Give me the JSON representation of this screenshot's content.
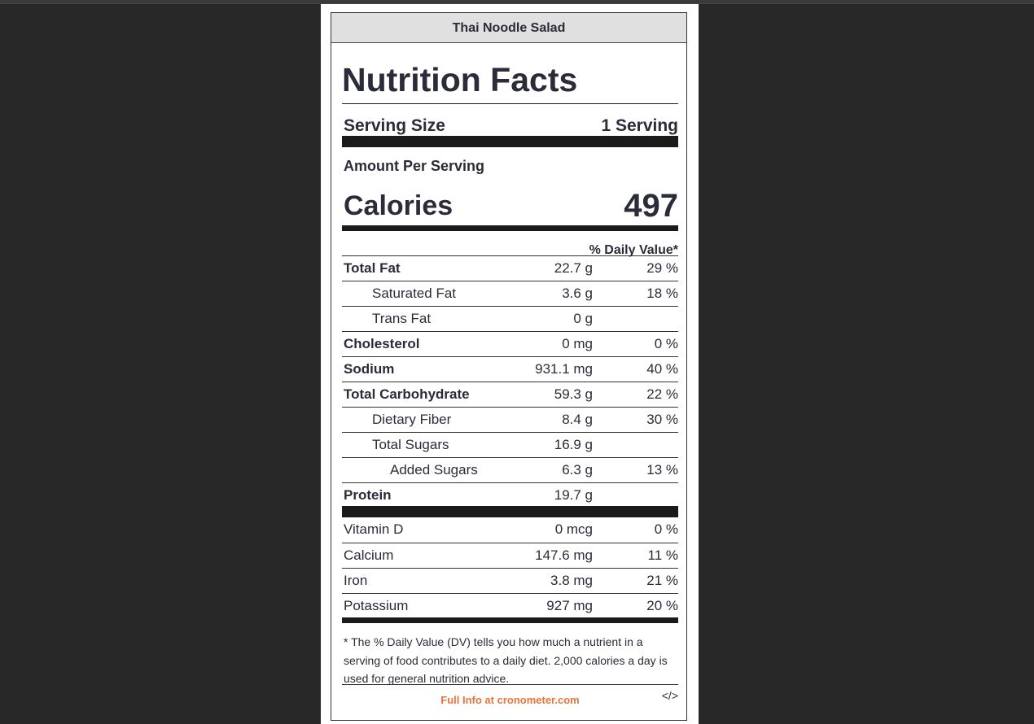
{
  "label": {
    "header_title": "Thai Noodle Salad",
    "title": "Nutrition Facts",
    "serving_size_label": "Serving Size",
    "serving_size_value": "1 Serving",
    "amount_per_serving": "Amount Per Serving",
    "calories_label": "Calories",
    "calories_value": "497",
    "dv_header": "% Daily Value*",
    "nutrients": [
      {
        "name": "Total Fat",
        "amount": "22.7 g",
        "dv": "29 %"
      },
      {
        "name": "Saturated Fat",
        "amount": "3.6 g",
        "dv": "18 %"
      },
      {
        "name": "Trans Fat",
        "amount": "0 g",
        "dv": ""
      },
      {
        "name": "Cholesterol",
        "amount": "0 mg",
        "dv": "0 %"
      },
      {
        "name": "Sodium",
        "amount": "931.1 mg",
        "dv": "40 %"
      },
      {
        "name": "Total Carbohydrate",
        "amount": "59.3 g",
        "dv": "22 %"
      },
      {
        "name": "Dietary Fiber",
        "amount": "8.4 g",
        "dv": "30 %"
      },
      {
        "name": "Total Sugars",
        "amount": "16.9 g",
        "dv": ""
      },
      {
        "name": "Added Sugars",
        "amount": "6.3 g",
        "dv": "13 %"
      },
      {
        "name": "Protein",
        "amount": "19.7 g",
        "dv": ""
      }
    ],
    "vitamins": [
      {
        "name": "Vitamin D",
        "amount": "0 mcg",
        "dv": "0 %"
      },
      {
        "name": "Calcium",
        "amount": "147.6 mg",
        "dv": "11 %"
      },
      {
        "name": "Iron",
        "amount": "3.8 mg",
        "dv": "21 %"
      },
      {
        "name": "Potassium",
        "amount": "927 mg",
        "dv": "20 %"
      }
    ],
    "footnote": "* The % Daily Value (DV) tells you how much a nutrient in a serving of food contributes to a daily diet. 2,000 calories a day is used for general nutrition advice.",
    "footer_link": "Full Info at cronometer.com",
    "embed_code": "</>",
    "colors": {
      "link": "#e8743b",
      "text": "#2b2b3a",
      "header_bg": "#e0e0e0",
      "page_bg": "#282828"
    }
  }
}
